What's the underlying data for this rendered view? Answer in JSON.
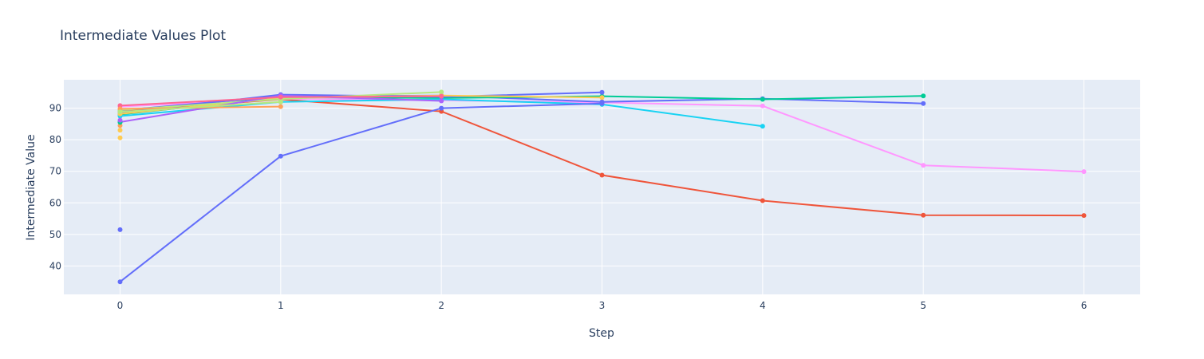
{
  "chart_data": {
    "type": "line",
    "title": "Intermediate Values Plot",
    "xlabel": "Step",
    "ylabel": "Intermediate Value",
    "xlim": [
      -0.35,
      6.35
    ],
    "ylim": [
      31,
      99
    ],
    "x_ticks": [
      0,
      1,
      2,
      3,
      4,
      5,
      6
    ],
    "y_ticks": [
      40,
      50,
      60,
      70,
      80,
      90
    ],
    "grid": true,
    "legend": "none",
    "colors": {
      "plot_background": "#e5ecf6",
      "grid": "#ffffff",
      "text": "#2a3f5f"
    },
    "series": [
      {
        "color": "#ef553b",
        "points": [
          [
            0,
            89.0
          ],
          [
            1,
            92.8
          ],
          [
            2,
            89.0
          ],
          [
            3,
            68.8
          ],
          [
            4,
            60.7
          ],
          [
            5,
            56.1
          ],
          [
            6,
            56.0
          ]
        ]
      },
      {
        "color": "#ff97ff",
        "points": [
          [
            0,
            90.5
          ],
          [
            1,
            93.0
          ],
          [
            2,
            92.5
          ],
          [
            3,
            91.8
          ],
          [
            4,
            90.7
          ],
          [
            5,
            71.9
          ],
          [
            6,
            69.9
          ]
        ]
      },
      {
        "color": "#636efa",
        "points": [
          [
            0,
            89.3
          ],
          [
            1,
            93.8
          ],
          [
            2,
            94.0
          ],
          [
            3,
            92.0
          ],
          [
            4,
            93.0
          ],
          [
            5,
            91.5
          ]
        ]
      },
      {
        "color": "#00cc96",
        "points": [
          [
            0,
            88.0
          ],
          [
            1,
            93.5
          ],
          [
            2,
            93.2
          ],
          [
            3,
            93.8
          ],
          [
            4,
            92.8
          ],
          [
            5,
            93.9
          ]
        ]
      },
      {
        "color": "#19d3f3",
        "points": [
          [
            0,
            87.5
          ],
          [
            1,
            92.0
          ],
          [
            2,
            92.8
          ],
          [
            3,
            91.2
          ],
          [
            4,
            84.3
          ]
        ]
      },
      {
        "color": "#636efa",
        "points": [
          [
            0,
            35.0
          ],
          [
            1,
            74.8
          ],
          [
            2,
            90.0
          ],
          [
            3,
            91.5
          ]
        ]
      },
      {
        "color": "#636efa",
        "points": [
          [
            0,
            88.5
          ],
          [
            1,
            94.3
          ],
          [
            2,
            93.6
          ],
          [
            3,
            95.0
          ]
        ]
      },
      {
        "color": "#fecb52",
        "points": [
          [
            0,
            88.2
          ],
          [
            1,
            93.2
          ],
          [
            2,
            94.0
          ],
          [
            3,
            93.4
          ]
        ]
      },
      {
        "color": "#b6e880",
        "points": [
          [
            0,
            89.4
          ],
          [
            1,
            92.9
          ],
          [
            2,
            95.1
          ]
        ]
      },
      {
        "color": "#ab63fa",
        "points": [
          [
            0,
            85.6
          ],
          [
            1,
            94.0
          ],
          [
            2,
            92.3
          ]
        ]
      },
      {
        "color": "#ff6692",
        "points": [
          [
            0,
            90.8
          ],
          [
            1,
            93.5
          ],
          [
            2,
            93.8
          ]
        ]
      },
      {
        "color": "#ffa15a",
        "points": [
          [
            0,
            89.8
          ],
          [
            1,
            90.5
          ]
        ]
      },
      {
        "color": "#b6e880",
        "points": [
          [
            0,
            88.8
          ],
          [
            1,
            92.0
          ]
        ]
      },
      {
        "color": "#636efa",
        "points": [
          [
            0,
            51.5
          ]
        ]
      },
      {
        "color": "#fecb52",
        "points": [
          [
            0,
            80.6
          ]
        ]
      },
      {
        "color": "#fecb52",
        "points": [
          [
            0,
            83.0
          ]
        ]
      },
      {
        "color": "#ffa15a",
        "points": [
          [
            0,
            84.5
          ]
        ]
      },
      {
        "color": "#00cc96",
        "points": [
          [
            0,
            85.5
          ]
        ]
      },
      {
        "color": "#ab63fa",
        "points": [
          [
            0,
            86.2
          ]
        ]
      }
    ]
  }
}
